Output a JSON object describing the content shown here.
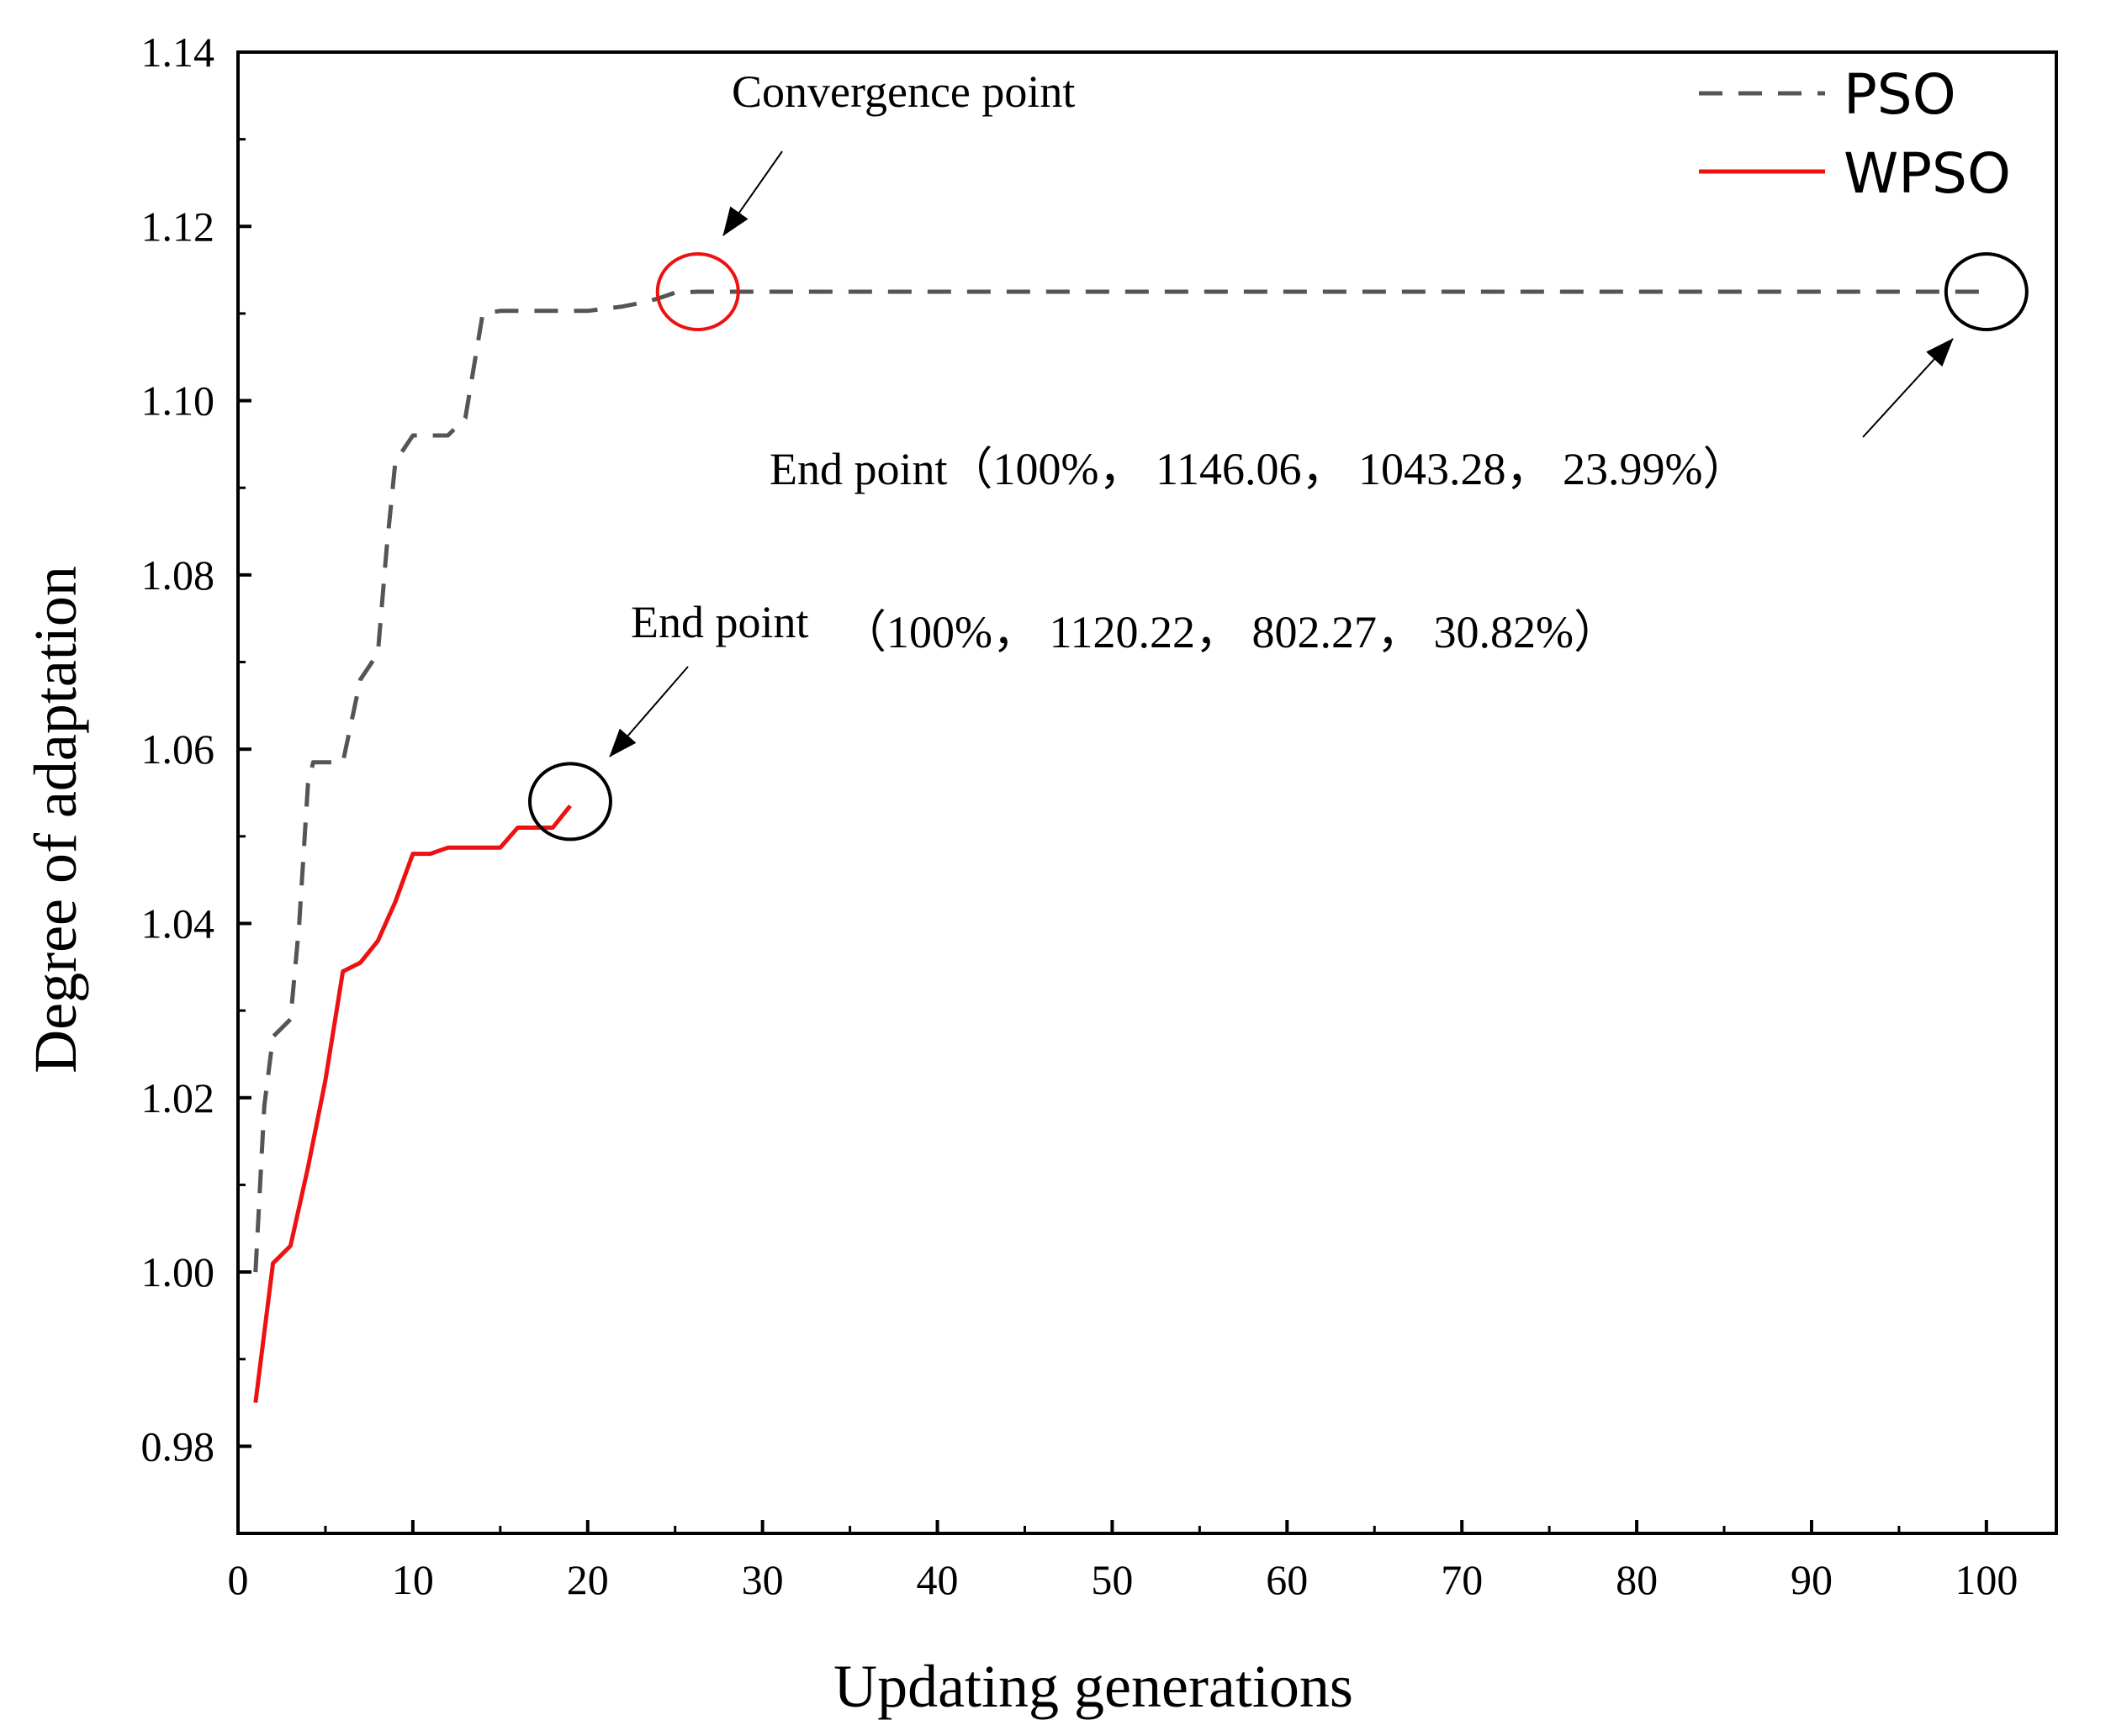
{
  "chart_data": {
    "type": "line",
    "title": "",
    "xlabel": "Updating generations",
    "ylabel": "Degree of adaptation",
    "xlim": [
      0,
      104
    ],
    "ylim": [
      0.97,
      1.14
    ],
    "xticks": [
      0,
      10,
      20,
      30,
      40,
      50,
      60,
      70,
      80,
      90,
      100
    ],
    "yticks": [
      0.98,
      1.0,
      1.02,
      1.04,
      1.06,
      1.08,
      1.1,
      1.12,
      1.14
    ],
    "grid": false,
    "legend_position": "top-right",
    "series": [
      {
        "name": "PSO",
        "style": "dashed",
        "color": "#555555",
        "points": [
          [
            1,
            1.0
          ],
          [
            1.5,
            1.019
          ],
          [
            2,
            1.027
          ],
          [
            3,
            1.029
          ],
          [
            3.5,
            1.04
          ],
          [
            4,
            1.056
          ],
          [
            4.3,
            1.0585
          ],
          [
            6,
            1.0585
          ],
          [
            7,
            1.068
          ],
          [
            8,
            1.071
          ],
          [
            8.5,
            1.083
          ],
          [
            9,
            1.093
          ],
          [
            10,
            1.096
          ],
          [
            11,
            1.096
          ],
          [
            12,
            1.096
          ],
          [
            13,
            1.098
          ],
          [
            14,
            1.11
          ],
          [
            15,
            1.1103
          ],
          [
            20,
            1.1103
          ],
          [
            22,
            1.1108
          ],
          [
            23,
            1.1112
          ],
          [
            24,
            1.1117
          ],
          [
            25,
            1.1124
          ],
          [
            26.3,
            1.1125
          ],
          [
            100,
            1.1125
          ]
        ]
      },
      {
        "name": "WPSO",
        "style": "solid",
        "color": "#ee1111",
        "points": [
          [
            1,
            0.985
          ],
          [
            2,
            1.001
          ],
          [
            3,
            1.003
          ],
          [
            4,
            1.012
          ],
          [
            5,
            1.022
          ],
          [
            6,
            1.0345
          ],
          [
            7,
            1.0355
          ],
          [
            8,
            1.038
          ],
          [
            9,
            1.0425
          ],
          [
            10,
            1.048
          ],
          [
            11,
            1.048
          ],
          [
            12,
            1.0487
          ],
          [
            15,
            1.0487
          ],
          [
            16,
            1.051
          ],
          [
            18,
            1.051
          ],
          [
            19,
            1.0535
          ]
        ]
      }
    ],
    "markers": [
      {
        "label": "Convergence point",
        "x": 26.3,
        "y": 1.1125,
        "color": "#ee1111"
      },
      {
        "label": "PSO end point",
        "x": 100,
        "y": 1.1125,
        "color": "#000000"
      },
      {
        "label": "WPSO end point",
        "x": 19,
        "y": 1.054,
        "color": "#000000"
      }
    ],
    "annotations": {
      "convergence": "Convergence point",
      "pso_end": "End point（100%， 1146.06， 1043.28， 23.99%）",
      "wpso_end_prefix": "End point",
      "wpso_end_values": "（100%， 1120.22， 802.27， 30.82%）"
    }
  }
}
